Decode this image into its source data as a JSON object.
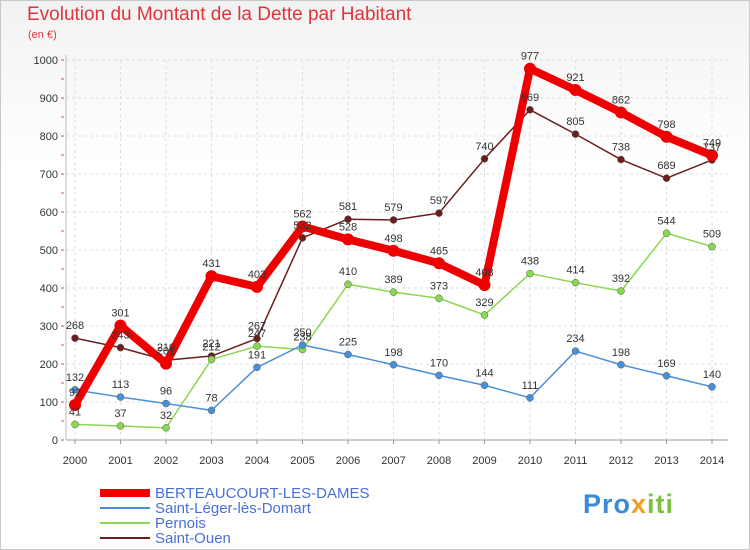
{
  "chart_data": {
    "type": "line",
    "title": "Evolution du Montant de la Dette par Habitant",
    "subtitle": "(en €)",
    "x": [
      "2000",
      "2001",
      "2002",
      "2003",
      "2004",
      "2005",
      "2006",
      "2007",
      "2008",
      "2009",
      "2010",
      "2011",
      "2012",
      "2013",
      "2014"
    ],
    "ylim": [
      0,
      1000
    ],
    "yticks": [
      0,
      100,
      200,
      300,
      400,
      500,
      600,
      700,
      800,
      900,
      1000
    ],
    "grid": true,
    "legend": "bottom-left",
    "series": [
      {
        "name": "BERTEAUCOURT-LES-DAMES",
        "color": "#ee0000",
        "values": [
          92,
          301,
          201,
          431,
          403,
          562,
          528,
          498,
          465,
          408,
          977,
          921,
          862,
          798,
          749
        ]
      },
      {
        "name": "Saint-Léger-lès-Domart",
        "color": "#4a90d9",
        "values": [
          132,
          113,
          96,
          78,
          191,
          250,
          225,
          198,
          170,
          144,
          111,
          234,
          198,
          169,
          140
        ]
      },
      {
        "name": "Pernois",
        "color": "#88d850",
        "values": [
          41,
          37,
          32,
          212,
          247,
          238,
          410,
          389,
          373,
          329,
          438,
          414,
          392,
          544,
          509
        ]
      },
      {
        "name": "Saint-Ouen",
        "color": "#6b1e1e",
        "values": [
          268,
          243,
          210,
          221,
          267,
          532,
          581,
          579,
          597,
          740,
          869,
          805,
          738,
          689,
          737
        ]
      }
    ]
  },
  "brand": {
    "part1": "Pro",
    "part2": "x",
    "part3": "iti"
  }
}
